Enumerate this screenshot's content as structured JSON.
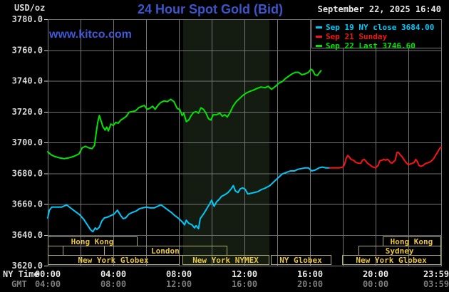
{
  "header": {
    "unit_label": "USD/oz",
    "title": "24 Hour Spot Gold (Bid)",
    "website": "www.kitco.com",
    "datetime": "September 22, 2025 16:40"
  },
  "colors": {
    "background": "#000000",
    "title_blue": "#3c55cc",
    "kitco_blue": "#3f58d8",
    "grid": "#757575",
    "plot_border": "#7a7a7a",
    "nymex_band": "#141b10",
    "session_border": "#b2ab72",
    "session_text": "#e8c53d",
    "axis_text": "#d6d6d6",
    "gmt_text": "#7d7d7d",
    "white_text": "#e8e8e8",
    "cyan": "#00c8f8",
    "red": "#f81414",
    "green": "#00e400"
  },
  "legend": {
    "items": [
      {
        "id": "sep19",
        "label": "Sep 19 NY close 3684.00",
        "color": "#00c8f8"
      },
      {
        "id": "sep21",
        "label": "Sep 21 Sunday",
        "color": "#f81414"
      },
      {
        "id": "sep22",
        "label": "Sep 22 Last 3746.60",
        "color": "#00e400"
      }
    ]
  },
  "axes": {
    "ny_time_label": "NY Time",
    "gmt_label": "GMT",
    "x_tick_hours": [
      0,
      4,
      8,
      12,
      16,
      20,
      23.983
    ],
    "x_ticks_ny": [
      "00:00",
      "04:00",
      "08:00",
      "12:00",
      "16:00",
      "20:00",
      "23:59"
    ],
    "x_ticks_gmt": [
      "04:00",
      "08:00",
      "12:00",
      "16:00",
      "20:00",
      "00:00",
      "03:59"
    ],
    "y_min": 3620,
    "y_max": 3780,
    "y_step": 20,
    "x_hours": 24,
    "grid_step_hours": 2
  },
  "sessions": [
    {
      "row": 0,
      "label": "Hong Kong",
      "start_h": 0,
      "end_h": 5.43
    },
    {
      "row": 0,
      "label": "Hong Kong",
      "start_h": 20.43,
      "end_h": 23.96
    },
    {
      "row": 1,
      "label": "",
      "start_h": 0,
      "end_h": 0.91
    },
    {
      "row": 1,
      "label": "",
      "start_h": 0.91,
      "end_h": 3.43
    },
    {
      "row": 1,
      "label": "London",
      "start_h": 3.43,
      "end_h": 10.91
    },
    {
      "row": 1,
      "label": "Sydney",
      "start_h": 18.96,
      "end_h": 23.96
    },
    {
      "row": 2,
      "label": "New York Globex",
      "start_h": 0,
      "end_h": 8.0
    },
    {
      "row": 2,
      "label": "New York NYMEX",
      "start_h": 8.22,
      "end_h": 13.48
    },
    {
      "row": 2,
      "label": "NY Globex",
      "start_h": 13.61,
      "end_h": 17.26
    },
    {
      "row": 2,
      "label": "New York Globex",
      "start_h": 17.96,
      "end_h": 23.96
    }
  ],
  "chart_data": {
    "type": "line",
    "title": "24 Hour Spot Gold (Bid)",
    "xlabel": "NY Time (hours 00:00-23:59)",
    "ylabel": "USD/oz",
    "ylim": [
      3620,
      3780
    ],
    "grid": true,
    "legend_position": "top-right",
    "shaded_band_hours": [
      8.26,
      13.52
    ],
    "series": [
      {
        "name": "Sep 19 NY close 3684.00",
        "color": "#00c8f8",
        "points": [
          [
            0,
            3651
          ],
          [
            0.1,
            3656
          ],
          [
            0.25,
            3658
          ],
          [
            0.55,
            3658
          ],
          [
            0.85,
            3658
          ],
          [
            1.15,
            3659.5
          ],
          [
            1.45,
            3657
          ],
          [
            1.7,
            3655
          ],
          [
            1.95,
            3653
          ],
          [
            2.2,
            3650
          ],
          [
            2.45,
            3646
          ],
          [
            2.6,
            3643.5
          ],
          [
            2.75,
            3642
          ],
          [
            2.9,
            3644.5
          ],
          [
            3.0,
            3643.5
          ],
          [
            3.15,
            3645
          ],
          [
            3.3,
            3649
          ],
          [
            3.45,
            3651
          ],
          [
            3.65,
            3651.5
          ],
          [
            3.85,
            3652.5
          ],
          [
            4.05,
            3653.5
          ],
          [
            4.25,
            3656
          ],
          [
            4.45,
            3652.5
          ],
          [
            4.6,
            3650.5
          ],
          [
            4.75,
            3651
          ],
          [
            4.95,
            3653.5
          ],
          [
            5.15,
            3654.5
          ],
          [
            5.4,
            3655.5
          ],
          [
            5.6,
            3657
          ],
          [
            5.8,
            3657.5
          ],
          [
            6.0,
            3658
          ],
          [
            6.25,
            3657.5
          ],
          [
            6.5,
            3657.5
          ],
          [
            6.7,
            3658.5
          ],
          [
            6.9,
            3659.5
          ],
          [
            7.1,
            3658
          ],
          [
            7.35,
            3656
          ],
          [
            7.55,
            3654.5
          ],
          [
            7.75,
            3652.5
          ],
          [
            8.0,
            3650.5
          ],
          [
            8.2,
            3648.5
          ],
          [
            8.35,
            3646.5
          ],
          [
            8.45,
            3649.5
          ],
          [
            8.6,
            3647.5
          ],
          [
            8.8,
            3646.5
          ],
          [
            8.95,
            3644.5
          ],
          [
            9.05,
            3646
          ],
          [
            9.2,
            3644
          ],
          [
            9.3,
            3650.5
          ],
          [
            9.5,
            3653.5
          ],
          [
            9.7,
            3657
          ],
          [
            9.9,
            3660.5
          ],
          [
            10.0,
            3662.5
          ],
          [
            10.15,
            3658.5
          ],
          [
            10.3,
            3661.5
          ],
          [
            10.45,
            3663
          ],
          [
            10.6,
            3665
          ],
          [
            10.8,
            3666
          ],
          [
            11.0,
            3667.5
          ],
          [
            11.2,
            3670
          ],
          [
            11.32,
            3672
          ],
          [
            11.45,
            3668.5
          ],
          [
            11.6,
            3667.5
          ],
          [
            11.75,
            3670
          ],
          [
            11.9,
            3670.5
          ],
          [
            12.05,
            3669.5
          ],
          [
            12.2,
            3666.5
          ],
          [
            12.4,
            3667
          ],
          [
            12.6,
            3667.5
          ],
          [
            12.8,
            3668
          ],
          [
            13.05,
            3669.5
          ],
          [
            13.3,
            3670.5
          ],
          [
            13.55,
            3672
          ],
          [
            13.8,
            3674.5
          ],
          [
            14.0,
            3676.5
          ],
          [
            14.15,
            3678
          ],
          [
            14.3,
            3679.5
          ],
          [
            14.55,
            3680.5
          ],
          [
            14.8,
            3681.5
          ],
          [
            15.05,
            3681.5
          ],
          [
            15.25,
            3682.5
          ],
          [
            15.45,
            3683
          ],
          [
            15.7,
            3683.5
          ],
          [
            15.9,
            3683.5
          ],
          [
            16.1,
            3681.5
          ],
          [
            16.3,
            3682
          ],
          [
            16.55,
            3683.5
          ],
          [
            16.75,
            3684
          ],
          [
            16.95,
            3683.5
          ],
          [
            17.2,
            3683.5
          ]
        ]
      },
      {
        "name": "Sep 21 Sunday",
        "color": "#f81414",
        "points": [
          [
            17.2,
            3683.5
          ],
          [
            17.5,
            3683.5
          ],
          [
            17.8,
            3683.5
          ],
          [
            18.0,
            3684
          ],
          [
            18.1,
            3685.5
          ],
          [
            18.2,
            3689.5
          ],
          [
            18.3,
            3691.5
          ],
          [
            18.4,
            3690.5
          ],
          [
            18.5,
            3689
          ],
          [
            18.65,
            3688.5
          ],
          [
            18.8,
            3687
          ],
          [
            18.95,
            3686.5
          ],
          [
            19.1,
            3686.5
          ],
          [
            19.2,
            3688.5
          ],
          [
            19.3,
            3689
          ],
          [
            19.4,
            3688
          ],
          [
            19.5,
            3686.5
          ],
          [
            19.65,
            3685.5
          ],
          [
            19.75,
            3684.5
          ],
          [
            19.85,
            3684
          ],
          [
            20.0,
            3683.5
          ],
          [
            20.15,
            3685
          ],
          [
            20.25,
            3688
          ],
          [
            20.4,
            3688.5
          ],
          [
            20.5,
            3689
          ],
          [
            20.6,
            3688.5
          ],
          [
            20.7,
            3689
          ],
          [
            20.8,
            3688.5
          ],
          [
            20.9,
            3687
          ],
          [
            21.0,
            3686.5
          ],
          [
            21.1,
            3687.5
          ],
          [
            21.2,
            3688.5
          ],
          [
            21.3,
            3693.5
          ],
          [
            21.4,
            3693.5
          ],
          [
            21.5,
            3692
          ],
          [
            21.6,
            3691
          ],
          [
            21.75,
            3688.5
          ],
          [
            21.9,
            3686.5
          ],
          [
            22.0,
            3685.5
          ],
          [
            22.1,
            3686
          ],
          [
            22.25,
            3686.5
          ],
          [
            22.35,
            3687
          ],
          [
            22.45,
            3689
          ],
          [
            22.55,
            3687.5
          ],
          [
            22.65,
            3685
          ],
          [
            22.75,
            3684.5
          ],
          [
            22.9,
            3685
          ],
          [
            23.0,
            3686
          ],
          [
            23.1,
            3686.5
          ],
          [
            23.25,
            3687
          ],
          [
            23.35,
            3687.5
          ],
          [
            23.45,
            3688.5
          ],
          [
            23.55,
            3689.5
          ],
          [
            23.65,
            3691.5
          ],
          [
            23.8,
            3694
          ],
          [
            23.9,
            3696
          ],
          [
            24.0,
            3697
          ]
        ]
      },
      {
        "name": "Sep 22 Last 3746.60",
        "color": "#00e400",
        "points": [
          [
            0,
            3694
          ],
          [
            0.2,
            3692
          ],
          [
            0.4,
            3691
          ],
          [
            0.7,
            3690
          ],
          [
            1.0,
            3689.5
          ],
          [
            1.3,
            3690
          ],
          [
            1.6,
            3691
          ],
          [
            1.9,
            3692.5
          ],
          [
            2.1,
            3696.5
          ],
          [
            2.3,
            3697.5
          ],
          [
            2.5,
            3696.5
          ],
          [
            2.7,
            3696
          ],
          [
            2.85,
            3698
          ],
          [
            2.95,
            3706
          ],
          [
            3.05,
            3713
          ],
          [
            3.15,
            3717.5
          ],
          [
            3.25,
            3714
          ],
          [
            3.35,
            3710.5
          ],
          [
            3.5,
            3708
          ],
          [
            3.6,
            3710
          ],
          [
            3.7,
            3707.5
          ],
          [
            3.85,
            3712
          ],
          [
            4.0,
            3711
          ],
          [
            4.15,
            3713
          ],
          [
            4.3,
            3712.5
          ],
          [
            4.45,
            3714.5
          ],
          [
            4.6,
            3715.5
          ],
          [
            4.8,
            3717
          ],
          [
            4.95,
            3719.5
          ],
          [
            5.1,
            3720
          ],
          [
            5.35,
            3720.5
          ],
          [
            5.55,
            3722.5
          ],
          [
            5.75,
            3723.5
          ],
          [
            5.9,
            3724
          ],
          [
            6.05,
            3721.5
          ],
          [
            6.2,
            3722
          ],
          [
            6.4,
            3723.5
          ],
          [
            6.55,
            3721.5
          ],
          [
            6.75,
            3724.5
          ],
          [
            6.9,
            3726
          ],
          [
            7.1,
            3727
          ],
          [
            7.3,
            3726.5
          ],
          [
            7.5,
            3728
          ],
          [
            7.7,
            3726.5
          ],
          [
            7.9,
            3722
          ],
          [
            8.05,
            3721.5
          ],
          [
            8.2,
            3717.5
          ],
          [
            8.3,
            3719
          ],
          [
            8.45,
            3713.5
          ],
          [
            8.6,
            3714.5
          ],
          [
            8.75,
            3717.5
          ],
          [
            8.9,
            3719.5
          ],
          [
            9.05,
            3720
          ],
          [
            9.2,
            3719
          ],
          [
            9.35,
            3722.5
          ],
          [
            9.5,
            3721.5
          ],
          [
            9.65,
            3719
          ],
          [
            9.8,
            3715.5
          ],
          [
            9.95,
            3714.5
          ],
          [
            10.1,
            3718
          ],
          [
            10.3,
            3718
          ],
          [
            10.5,
            3719
          ],
          [
            10.65,
            3717
          ],
          [
            10.8,
            3718
          ],
          [
            10.95,
            3716.5
          ],
          [
            11.1,
            3719
          ],
          [
            11.3,
            3723.5
          ],
          [
            11.5,
            3726.5
          ],
          [
            11.7,
            3728.5
          ],
          [
            11.9,
            3730.5
          ],
          [
            12.1,
            3732
          ],
          [
            12.3,
            3733
          ],
          [
            12.55,
            3734
          ],
          [
            12.75,
            3735
          ],
          [
            13.0,
            3736
          ],
          [
            13.25,
            3735.5
          ],
          [
            13.45,
            3736.5
          ],
          [
            13.65,
            3734.5
          ],
          [
            13.9,
            3736.5
          ],
          [
            14.1,
            3738.5
          ],
          [
            14.3,
            3739.5
          ],
          [
            14.5,
            3741.5
          ],
          [
            14.7,
            3743
          ],
          [
            14.9,
            3744.5
          ],
          [
            15.1,
            3745.5
          ],
          [
            15.3,
            3745.5
          ],
          [
            15.5,
            3744
          ],
          [
            15.7,
            3744.5
          ],
          [
            15.9,
            3745.5
          ],
          [
            16.05,
            3747.5
          ],
          [
            16.15,
            3747
          ],
          [
            16.3,
            3744
          ],
          [
            16.45,
            3743.5
          ],
          [
            16.55,
            3745
          ],
          [
            16.67,
            3746.6
          ]
        ]
      }
    ]
  }
}
